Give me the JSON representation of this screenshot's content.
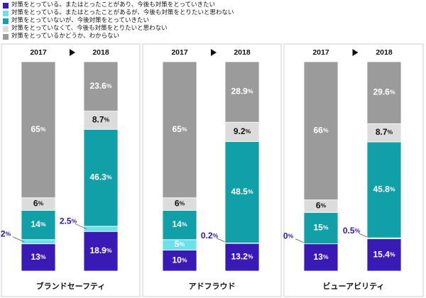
{
  "legend": [
    {
      "label": "対策をとっている。またはとったことがあり、今後も対策をとっていきたい",
      "color": "#3a1ab5"
    },
    {
      "label": "対策をとっている。またはとったことがあるが、今後も対策をとりたいと思わない",
      "color": "#6fe0ea"
    },
    {
      "label": "対策をとっていないが、今後対策をとっていきたい",
      "color": "#12a0a8"
    },
    {
      "label": "対策をとっていなくて、今後も対策をとりたいと思わない",
      "color": "#dcdcdc"
    },
    {
      "label": "対策をとっているかどうか、わからない",
      "color": "#9b9b9b"
    }
  ],
  "chart_data": [
    {
      "type": "bar",
      "stacked": true,
      "title": "ブランドセーフティ",
      "categories": [
        "2017",
        "2018"
      ],
      "series": [
        {
          "name": "対策をとっている。またはとったことがあり、今後も対策をとっていきたい",
          "values": [
            13,
            18.9
          ],
          "labels": [
            "13%",
            "18.9%"
          ]
        },
        {
          "name": "対策をとっている。またはとったことがあるが、今後も対策をとりたいと思わない",
          "values": [
            2,
            2.5
          ],
          "labels": [
            "2%",
            "2.5%"
          ]
        },
        {
          "name": "対策をとっていないが、今後対策をとっていきたい",
          "values": [
            14,
            46.3
          ],
          "labels": [
            "14%",
            "46.3%"
          ]
        },
        {
          "name": "対策をとっていなくて、今後も対策をとりたいと思わない",
          "values": [
            6,
            8.7
          ],
          "labels": [
            "6%",
            "8.7%"
          ]
        },
        {
          "name": "対策をとっているかどうか、わからない",
          "values": [
            65,
            23.6
          ],
          "labels": [
            "65%",
            "23.6%"
          ]
        }
      ]
    },
    {
      "type": "bar",
      "stacked": true,
      "title": "アドフラウド",
      "categories": [
        "2017",
        "2018"
      ],
      "series": [
        {
          "name": "対策をとっている。またはとったことがあり、今後も対策をとっていきたい",
          "values": [
            10,
            13.2
          ],
          "labels": [
            "10%",
            "13.2%"
          ]
        },
        {
          "name": "対策をとっている。またはとったことがあるが、今後も対策をとりたいと思わない",
          "values": [
            5,
            0.2
          ],
          "labels": [
            "5%",
            "0.2%"
          ]
        },
        {
          "name": "対策をとっていないが、今後対策をとっていきたい",
          "values": [
            14,
            48.5
          ],
          "labels": [
            "14%",
            "48.5%"
          ]
        },
        {
          "name": "対策をとっていなくて、今後も対策をとりたいと思わない",
          "values": [
            6,
            9.2
          ],
          "labels": [
            "6%",
            "9.2%"
          ]
        },
        {
          "name": "対策をとっているかどうか、わからない",
          "values": [
            65,
            28.9
          ],
          "labels": [
            "65%",
            "28.9%"
          ]
        }
      ]
    },
    {
      "type": "bar",
      "stacked": true,
      "title": "ビューアビリティ",
      "categories": [
        "2017",
        "2018"
      ],
      "series": [
        {
          "name": "対策をとっている。またはとったことがあり、今後も対策をとっていきたい",
          "values": [
            13,
            15.4
          ],
          "labels": [
            "13%",
            "15.4%"
          ]
        },
        {
          "name": "対策をとっている。またはとったことがあるが、今後も対策をとりたいと思わない",
          "values": [
            0,
            0.5
          ],
          "labels": [
            "0%",
            "0.5%"
          ]
        },
        {
          "name": "対策をとっていないが、今後対策をとっていきたい",
          "values": [
            15,
            45.8
          ],
          "labels": [
            "15%",
            "45.8%"
          ]
        },
        {
          "name": "対策をとっていなくて、今後も対策をとりたいと思わない",
          "values": [
            6,
            8.7
          ],
          "labels": [
            "6%",
            "8.7%"
          ]
        },
        {
          "name": "対策をとっているかどうか、わからない",
          "values": [
            66,
            29.6
          ],
          "labels": [
            "66%",
            "29.6%"
          ]
        }
      ]
    }
  ]
}
